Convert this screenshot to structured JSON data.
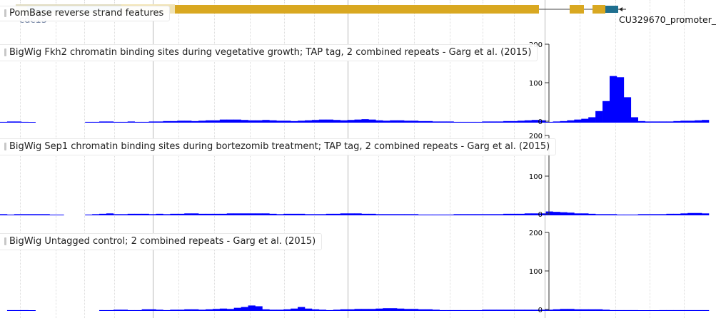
{
  "tracks": {
    "features": {
      "label": "PomBase reverse strand features",
      "gene_name": "cdc15",
      "promoter_name": "CU329670_promoter_"
    },
    "wiggle": [
      {
        "label": "BigWig Fkh2 chromatin binding sites during vegetative growth; TAP tag, 2 combined repeats - Garg et al. (2015)",
        "axis_ticks": [
          "200",
          "100",
          "0"
        ],
        "color": "#0000ff",
        "values": [
          2,
          3,
          3,
          2,
          1,
          0,
          0,
          0,
          0,
          0,
          0,
          0,
          2,
          2,
          3,
          3,
          2,
          2,
          3,
          2,
          2,
          3,
          3,
          4,
          4,
          5,
          5,
          4,
          5,
          6,
          6,
          8,
          8,
          8,
          7,
          6,
          6,
          7,
          6,
          5,
          5,
          4,
          5,
          6,
          7,
          8,
          8,
          7,
          6,
          7,
          8,
          9,
          8,
          6,
          5,
          6,
          6,
          5,
          5,
          4,
          4,
          3,
          3,
          3,
          2,
          2,
          2,
          2,
          3,
          3,
          3,
          4,
          4,
          5,
          6,
          7,
          6,
          2,
          3,
          4,
          6,
          8,
          10,
          14,
          30,
          56,
          121,
          118,
          66,
          14,
          4,
          3,
          3,
          3,
          3,
          4,
          5,
          5,
          6,
          7
        ]
      },
      {
        "label": "BigWig Sep1 chromatin binding sites during bortezomib treatment; TAP tag, 2 combined repeats - Garg et al. (2015)",
        "axis_ticks": [
          "200",
          "100",
          "0"
        ],
        "color": "#0000ff",
        "values": [
          3,
          2,
          3,
          3,
          3,
          3,
          3,
          1,
          1,
          0,
          0,
          0,
          2,
          3,
          4,
          5,
          3,
          3,
          4,
          4,
          4,
          3,
          4,
          3,
          4,
          4,
          5,
          5,
          4,
          4,
          4,
          4,
          5,
          5,
          5,
          5,
          5,
          5,
          4,
          3,
          4,
          4,
          4,
          3,
          3,
          3,
          4,
          4,
          5,
          5,
          5,
          4,
          4,
          3,
          3,
          3,
          3,
          3,
          3,
          2,
          2,
          2,
          2,
          2,
          3,
          3,
          3,
          3,
          3,
          3,
          3,
          4,
          4,
          4,
          5,
          5,
          5,
          10,
          9,
          8,
          7,
          5,
          5,
          4,
          3,
          3,
          3,
          2,
          2,
          2,
          3,
          3,
          3,
          3,
          4,
          4,
          5,
          6,
          6,
          5
        ]
      },
      {
        "label": "BigWig Untagged control; 2 combined repeats - Garg et al. (2015)",
        "axis_ticks": [
          "200",
          "100",
          "0"
        ],
        "color": "#0000ff",
        "values": [
          0,
          2,
          2,
          2,
          1,
          0,
          0,
          0,
          0,
          0,
          0,
          0,
          0,
          0,
          2,
          2,
          3,
          3,
          2,
          2,
          4,
          4,
          3,
          2,
          3,
          3,
          4,
          4,
          3,
          4,
          5,
          6,
          5,
          8,
          10,
          14,
          12,
          4,
          3,
          3,
          4,
          6,
          10,
          6,
          4,
          3,
          2,
          3,
          4,
          4,
          5,
          5,
          5,
          6,
          7,
          7,
          6,
          5,
          5,
          4,
          4,
          3,
          2,
          2,
          2,
          2,
          2,
          2,
          3,
          3,
          3,
          3,
          3,
          3,
          3,
          3,
          3,
          3,
          4,
          5,
          5,
          4,
          4,
          4,
          4,
          3,
          2,
          2,
          2,
          2,
          1,
          1,
          1,
          2,
          2,
          2,
          2,
          2,
          2,
          2
        ]
      }
    ]
  }
}
